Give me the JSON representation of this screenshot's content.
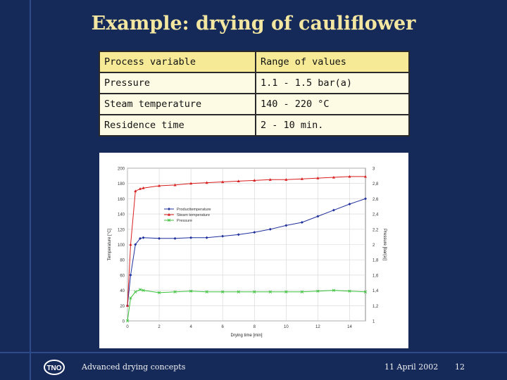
{
  "slide": {
    "title": "Example: drying of cauliflower",
    "footer_left": "Advanced drying concepts",
    "footer_date": "11 April 2002",
    "page_number": "12",
    "logo_text": "TNO"
  },
  "table": {
    "headers": [
      "Process variable",
      "Range of values"
    ],
    "rows": [
      [
        "Pressure",
        "1.1 - 1.5 bar(a)"
      ],
      [
        "Steam temperature",
        "140 - 220 °C"
      ],
      [
        "Residence time",
        "2 - 10 min."
      ]
    ]
  },
  "chart_data": {
    "type": "line",
    "xlabel": "Drying time [min]",
    "ylabel": "Temperature [°C]",
    "y2label": "Pressure [bar(a)]",
    "xlim": [
      0,
      15
    ],
    "ylim": [
      0,
      200
    ],
    "y2lim": [
      1,
      3
    ],
    "xticks": [
      "0",
      "2",
      "4",
      "6",
      "8",
      "10",
      "12",
      "14"
    ],
    "yticks": [
      "0",
      "20",
      "40",
      "60",
      "80",
      "100",
      "120",
      "140",
      "160",
      "180",
      "200"
    ],
    "y2ticks": [
      "1",
      "1,2",
      "1,4",
      "1,6",
      "1,8",
      "2",
      "2,2",
      "2,4",
      "2,6",
      "2,8",
      "3"
    ],
    "grid": true,
    "legend_position": "center-left",
    "series": [
      {
        "name": "Producttemperature",
        "axis": "left",
        "color": "#1f2f9c",
        "marker": "diamond",
        "x": [
          0,
          0.2,
          0.5,
          0.8,
          1,
          2,
          3,
          4,
          5,
          6,
          7,
          8,
          9,
          10,
          11,
          12,
          13,
          14,
          15
        ],
        "y": [
          20,
          60,
          100,
          108,
          109,
          108,
          108,
          109,
          109,
          111,
          113,
          116,
          120,
          125,
          129,
          137,
          145,
          153,
          160
        ]
      },
      {
        "name": "Steam temperature",
        "axis": "left",
        "color": "#d81e1e",
        "marker": "triangle",
        "x": [
          0,
          0.2,
          0.5,
          0.8,
          1,
          2,
          3,
          4,
          5,
          6,
          7,
          8,
          9,
          10,
          11,
          12,
          13,
          14,
          15
        ],
        "y": [
          20,
          100,
          170,
          173,
          174,
          177,
          178,
          180,
          181,
          182,
          183,
          184,
          185,
          185,
          186,
          187,
          188,
          189,
          189
        ]
      },
      {
        "name": "Pressure",
        "axis": "right",
        "color": "#38c238",
        "marker": "x",
        "x": [
          0,
          0.2,
          0.5,
          0.8,
          1,
          2,
          3,
          4,
          5,
          6,
          7,
          8,
          9,
          10,
          11,
          12,
          13,
          14,
          15
        ],
        "y": [
          1.0,
          1.3,
          1.38,
          1.41,
          1.4,
          1.37,
          1.38,
          1.39,
          1.38,
          1.38,
          1.38,
          1.38,
          1.38,
          1.38,
          1.38,
          1.39,
          1.4,
          1.39,
          1.38
        ]
      }
    ]
  }
}
